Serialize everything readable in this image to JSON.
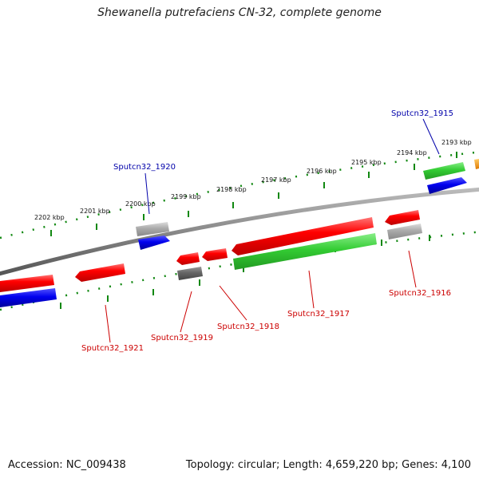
{
  "title": "Shewanella putrefaciens CN-32, complete genome",
  "footer": {
    "accession": "Accession: NC_009438",
    "summary": "Topology: circular; Length: 4,659,220 bp; Genes: 4,100"
  },
  "scale_ticks": [
    {
      "label": "2193 kbp",
      "kbp": 2193
    },
    {
      "label": "2194 kbp",
      "kbp": 2194
    },
    {
      "label": "2195 kbp",
      "kbp": 2195
    },
    {
      "label": "2196 kbp",
      "kbp": 2196
    },
    {
      "label": "2197 kbp",
      "kbp": 2197
    },
    {
      "label": "2198 kbp",
      "kbp": 2198
    },
    {
      "label": "2199 kbp",
      "kbp": 2199
    },
    {
      "label": "2200 kbp",
      "kbp": 2200
    },
    {
      "label": "2201 kbp",
      "kbp": 2201
    },
    {
      "label": "2202 kbp",
      "kbp": 2202
    }
  ],
  "gene_labels": [
    {
      "text": "Sputcn32_1915",
      "color": "#0000aa"
    },
    {
      "text": "Sputcn32_1916",
      "color": "#cc0000"
    },
    {
      "text": "Sputcn32_1917",
      "color": "#cc0000"
    },
    {
      "text": "Sputcn32_1918",
      "color": "#cc0000"
    },
    {
      "text": "Sputcn32_1919",
      "color": "#cc0000"
    },
    {
      "text": "Sputcn32_1920",
      "color": "#0000aa"
    },
    {
      "text": "Sputcn32_1921",
      "color": "#cc0000"
    }
  ],
  "colors": {
    "cds": "#ff0000",
    "rna": "#3ccc3c",
    "blue": "#0000ee",
    "grey": "#aaaaaa",
    "dark": "#666666",
    "orange": "#ff9900",
    "tick": "#118811",
    "backbone": "#888888"
  }
}
